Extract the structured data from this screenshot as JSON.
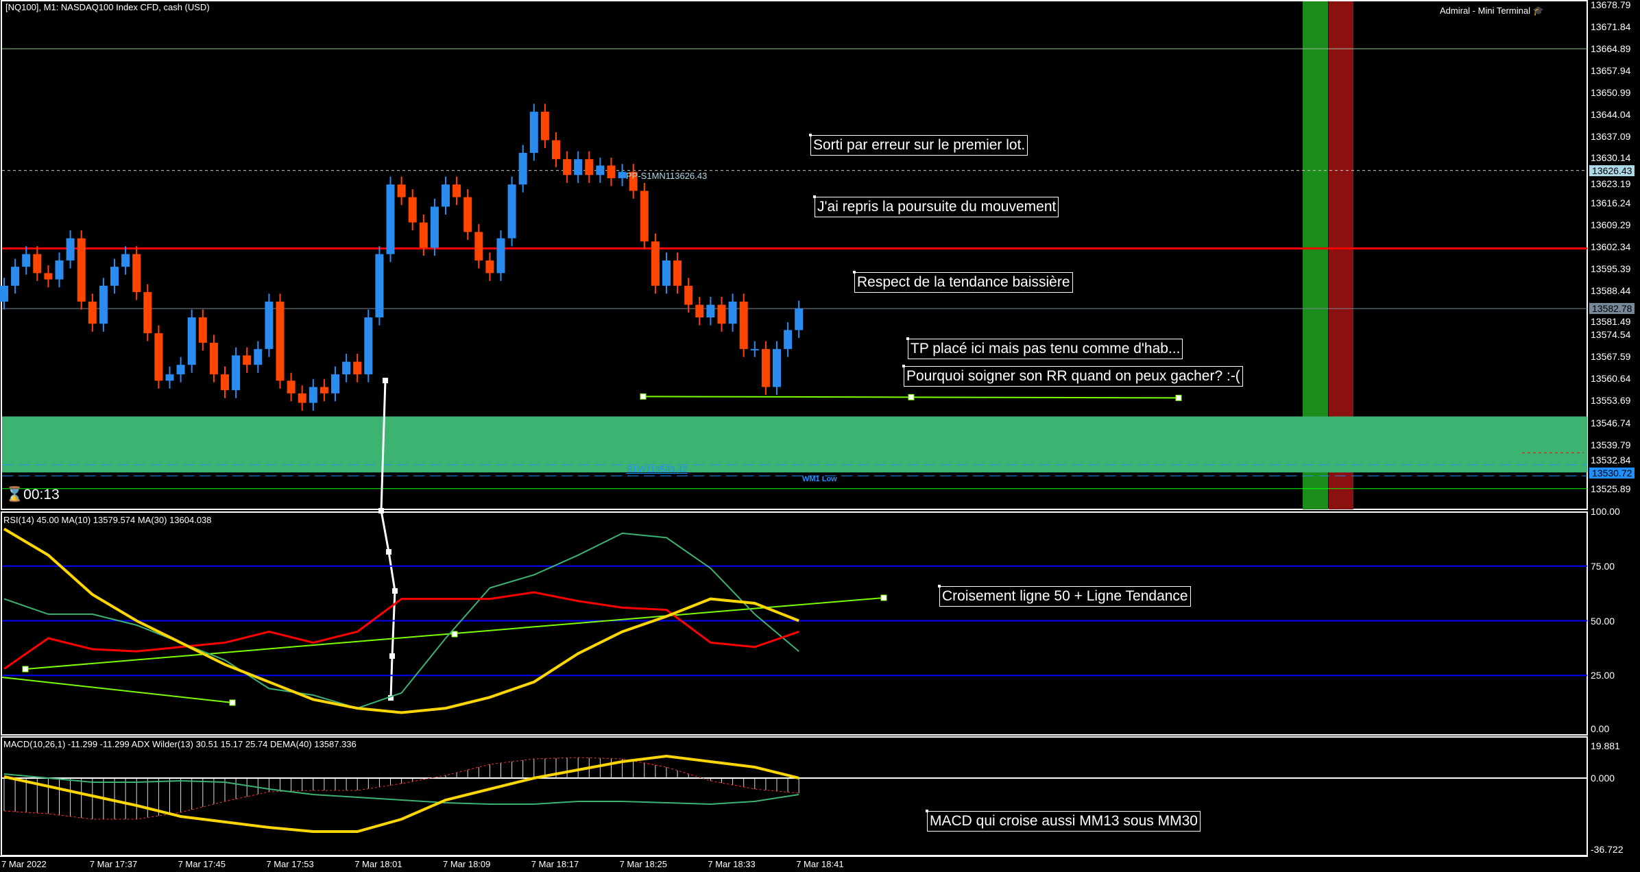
{
  "window": {
    "title": "[NQ100], M1:  NASDAQ100 Index CFD, cash (USD)",
    "terminal_label": "Admiral - Mini Terminal",
    "terminal_icon": "graduation-cap-icon",
    "timer": "00:13",
    "timer_icon": "hourglass-icon"
  },
  "colors": {
    "bull": "#2b8cf0",
    "bear": "#ff4500",
    "zone": "#3cb371",
    "resistance": "#ff0000",
    "rsi": "#ff0000",
    "ma10": "#3cb371",
    "ma30": "#ffd700",
    "trendline": "#7cfc00",
    "level_blue": "#0000ff"
  },
  "price_axis": {
    "labels": [
      "13678.79",
      "13671.84",
      "13664.89",
      "13657.94",
      "13650.99",
      "13644.04",
      "13637.09",
      "13630.14",
      "13623.19",
      "13616.24",
      "13609.29",
      "13602.34",
      "13595.39",
      "13588.44",
      "13581.49",
      "13574.54",
      "13567.59",
      "13560.64",
      "13553.69",
      "13546.74",
      "13539.79",
      "13532.84",
      "13525.89"
    ],
    "markers": [
      {
        "value": "13626.43",
        "bg": "#add8e6"
      },
      {
        "value": "13582.78",
        "bg": "#778899"
      },
      {
        "value": "13530.72",
        "bg": "#1e90ff"
      }
    ]
  },
  "levels": {
    "pivot_label": "PP-S1MN113626.43",
    "pivot_value": 13626.43,
    "resistance_value": 13601.8,
    "bid_value": 13582.78,
    "upper_green_value": 13664.89,
    "lower_green_value": 13525.9,
    "zone_top": 13548.7,
    "zone_bottom": 13531.0,
    "s1w_label": "S1W113533.42",
    "s1w_value": 13533.42,
    "wlow_label": "WM1 Low",
    "tp_line_value": 13555.0
  },
  "candles": {
    "first_open": 13585,
    "closes": [
      13590,
      13596,
      13600,
      13594,
      13592,
      13598,
      13605,
      13585,
      13578,
      13590,
      13596,
      13600,
      13588,
      13575,
      13560,
      13562,
      13565,
      13580,
      13572,
      13562,
      13557,
      13568,
      13565,
      13570,
      13585,
      13560,
      13556,
      13553,
      13558,
      13556,
      13562,
      13566,
      13562,
      13580,
      13600,
      13622,
      13618,
      13610,
      13602,
      13615,
      13622,
      13618,
      13607,
      13598,
      13594,
      13605,
      13622,
      13632,
      13645,
      13636,
      13630,
      13625,
      13630,
      13625,
      13628,
      13624,
      13626,
      13620,
      13604,
      13590,
      13598,
      13590,
      13584,
      13580,
      13584,
      13578,
      13585,
      13570,
      13570,
      13558,
      13570,
      13576,
      13582.78
    ]
  },
  "time_axis": [
    "7 Mar 2022",
    "7 Mar 17:37",
    "7 Mar 17:45",
    "7 Mar 17:53",
    "7 Mar 18:01",
    "7 Mar 18:09",
    "7 Mar 18:17",
    "7 Mar 18:25",
    "7 Mar 18:33",
    "7 Mar 18:41"
  ],
  "rsi_panel": {
    "label": "RSI(14) 45.00 MA(10) 13579.574 MA(30) 13604.038",
    "axis": [
      "100.00",
      "75.00",
      "50.00",
      "25.00",
      "0.00"
    ],
    "levels": [
      75,
      50,
      25
    ],
    "rsi": [
      28,
      42,
      37,
      36,
      38,
      40,
      45,
      40,
      45,
      60,
      60,
      60,
      63,
      59,
      56,
      55,
      40,
      38,
      45
    ],
    "ma10": [
      60,
      53,
      53,
      48,
      40,
      32,
      19,
      16,
      10,
      17,
      42,
      65,
      71,
      80,
      90,
      88,
      74,
      53,
      36
    ],
    "ma30": [
      92,
      80,
      62,
      50,
      40,
      30,
      22,
      14,
      10,
      8,
      10,
      15,
      22,
      35,
      45,
      52,
      60,
      58,
      50
    ]
  },
  "macd_panel": {
    "label": "MACD(10,26,1) -11.299 -11.299 ADX Wilder(13) 30.51 15.17 25.74 DEMA(40) 13587.336",
    "axis": [
      "19.881",
      "0.000",
      "-36.722"
    ],
    "range": [
      -36.722,
      19.881
    ],
    "histogram": [
      -24,
      -26,
      -30,
      -30,
      -25,
      -17,
      -10,
      -9,
      -9,
      -4,
      2,
      10,
      14,
      15,
      14,
      8,
      -2,
      -8,
      -11
    ],
    "yellow": [
      1,
      -6,
      -13,
      -20,
      -28,
      -32,
      -36,
      -39,
      -39,
      -30,
      -16,
      -8,
      0,
      6,
      12,
      16,
      12,
      8,
      0
    ],
    "green": [
      3,
      0,
      -3,
      -3,
      -2,
      -3,
      -8,
      -12,
      -14,
      -16,
      -18,
      -19,
      -19,
      -17,
      -17,
      -18,
      -19,
      -17,
      -12
    ]
  },
  "annotations": [
    "Sorti par erreur sur le premier lot.",
    "J'ai repris la poursuite du mouvement",
    "Respect de la tendance baissière",
    "TP placé ici mais pas tenu comme d'hab...",
    "Pourquoi soigner son RR quand on peux gacher? :-(",
    "Croisement ligne 50 + Ligne Tendance",
    "MACD qui croise aussi MM13 sous MM30"
  ]
}
